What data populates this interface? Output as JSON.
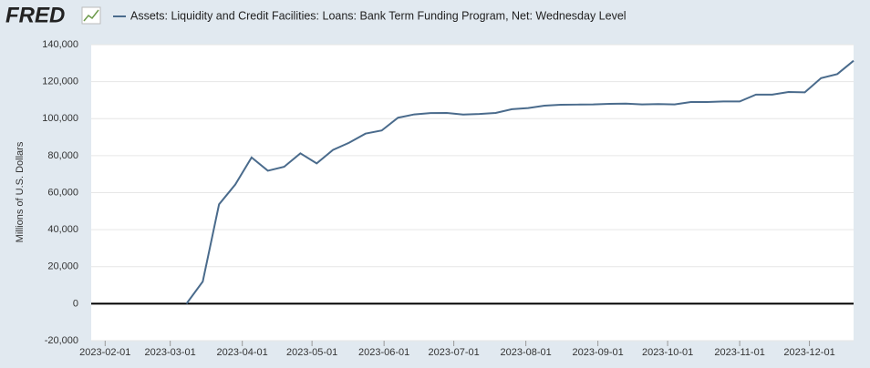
{
  "chart_data": {
    "type": "line",
    "logo": "FRED",
    "y_label": "Millions of U.S. Dollars",
    "x": [
      "2023-03-08",
      "2023-03-15",
      "2023-03-22",
      "2023-03-29",
      "2023-04-05",
      "2023-04-12",
      "2023-04-19",
      "2023-04-26",
      "2023-05-03",
      "2023-05-10",
      "2023-05-17",
      "2023-05-24",
      "2023-05-31",
      "2023-06-07",
      "2023-06-14",
      "2023-06-21",
      "2023-06-28",
      "2023-07-05",
      "2023-07-12",
      "2023-07-19",
      "2023-07-26",
      "2023-08-02",
      "2023-08-09",
      "2023-08-16",
      "2023-08-23",
      "2023-08-30",
      "2023-09-06",
      "2023-09-13",
      "2023-09-20",
      "2023-09-27",
      "2023-10-04",
      "2023-10-11",
      "2023-10-18",
      "2023-10-25",
      "2023-11-01",
      "2023-11-08",
      "2023-11-15",
      "2023-11-22",
      "2023-11-29",
      "2023-12-06",
      "2023-12-13",
      "2023-12-20"
    ],
    "series": [
      {
        "name": "Assets: Liquidity and Credit Facilities: Loans: Bank Term Funding Program, Net: Wednesday Level",
        "color": "#4a6b8c",
        "values": [
          0,
          11943,
          53669,
          64403,
          79020,
          71837,
          73983,
          81268,
          75825,
          83100,
          87000,
          91900,
          93600,
          100500,
          102300,
          103000,
          103100,
          102200,
          102500,
          103100,
          105100,
          105700,
          107000,
          107500,
          107600,
          107700,
          108000,
          108100,
          107700,
          107900,
          107700,
          109000,
          109000,
          109300,
          109300,
          113000,
          113000,
          114400,
          114200,
          121900,
          124100,
          131300
        ]
      }
    ],
    "xlim": [
      "2023-01-26",
      "2023-12-20"
    ],
    "xticks": [
      "2023-02-01",
      "2023-03-01",
      "2023-04-01",
      "2023-05-01",
      "2023-06-01",
      "2023-07-01",
      "2023-08-01",
      "2023-09-01",
      "2023-10-01",
      "2023-11-01",
      "2023-12-01"
    ],
    "ylim": [
      -20000,
      140000
    ],
    "yticks": [
      {
        "value": -20000,
        "label": "-20,000"
      },
      0,
      {
        "value": 20000,
        "label": "20,000"
      },
      {
        "value": 40000,
        "label": "40,000"
      },
      {
        "value": 60000,
        "label": "60,000"
      },
      {
        "value": 80000,
        "label": "80,000"
      },
      {
        "value": 100000,
        "label": "100,000"
      },
      {
        "value": 120000,
        "label": "120,000"
      },
      {
        "value": 140000,
        "label": "140,000"
      }
    ],
    "grid": true
  }
}
